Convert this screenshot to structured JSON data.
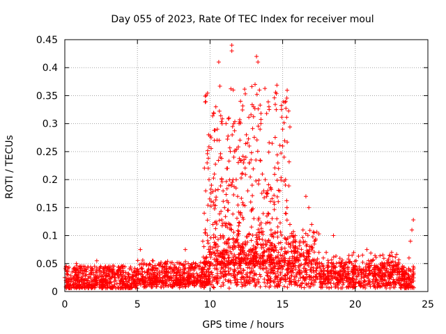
{
  "chart_data": {
    "type": "scatter",
    "title": "Day 055 of 2023, Rate Of TEC Index for receiver moul",
    "xlabel": "GPS time / hours",
    "ylabel": "ROTI / TECUs",
    "xlim": [
      0,
      25
    ],
    "ylim": [
      0,
      0.45
    ],
    "xticks": [
      0,
      5,
      10,
      15,
      20,
      25
    ],
    "xtick_labels": [
      "0",
      "5",
      "10",
      "15",
      "20",
      "25"
    ],
    "yticks": [
      0,
      0.05,
      0.1,
      0.15,
      0.2,
      0.25,
      0.3,
      0.35,
      0.4,
      0.45
    ],
    "ytick_labels": [
      "0",
      "0.05",
      "0.1",
      "0.15",
      "0.2",
      "0.25",
      "0.3",
      "0.35",
      "0.4",
      "0.45"
    ],
    "grid": true,
    "marker": "+",
    "series": [
      {
        "name": "ROTI",
        "color": "#ff0000",
        "description": "Dense continuous ROTI samples from 0 to 24 h; baseline mostly 0.005-0.05 TECU, with elevated scatter between ~9.5 and ~17 h",
        "x": [
          0.0,
          0.1,
          0.2,
          0.5,
          0.8,
          1.0,
          1.5,
          2.0,
          2.2,
          2.5,
          2.8,
          3.0,
          3.5,
          4.0,
          4.5,
          5.0,
          5.2,
          5.5,
          6.0,
          6.5,
          7.0,
          7.5,
          8.0,
          8.3,
          9.0,
          9.5,
          9.6,
          9.7,
          9.8,
          9.9,
          10.0,
          10.1,
          10.2,
          10.3,
          10.3,
          10.4,
          10.5,
          10.6,
          10.7,
          10.8,
          10.9,
          11.0,
          11.1,
          11.2,
          11.3,
          11.5,
          11.5,
          11.6,
          11.7,
          11.8,
          11.9,
          12.0,
          12.1,
          12.2,
          12.3,
          12.5,
          12.6,
          12.7,
          12.8,
          12.9,
          13.0,
          13.1,
          13.2,
          13.3,
          13.4,
          13.5,
          13.6,
          13.7,
          13.8,
          13.9,
          14.0,
          14.2,
          14.4,
          14.6,
          14.8,
          15.0,
          15.0,
          15.1,
          15.2,
          15.3,
          15.5,
          15.7,
          15.9,
          16.0,
          16.2,
          16.4,
          16.6,
          16.8,
          17.0,
          17.2,
          17.5,
          17.8,
          18.0,
          18.5,
          19.0,
          19.5,
          20.0,
          20.5,
          20.8,
          21.0,
          21.5,
          22.0,
          22.5,
          23.0,
          23.5,
          23.7,
          23.8,
          23.9,
          24.0,
          24.0
        ],
        "y": [
          0.025,
          0.045,
          0.03,
          0.035,
          0.05,
          0.025,
          0.04,
          0.03,
          0.055,
          0.035,
          0.045,
          0.03,
          0.02,
          0.035,
          0.025,
          0.035,
          0.075,
          0.05,
          0.04,
          0.035,
          0.045,
          0.035,
          0.05,
          0.075,
          0.05,
          0.09,
          0.14,
          0.18,
          0.23,
          0.28,
          0.08,
          0.19,
          0.12,
          0.21,
          0.27,
          0.33,
          0.29,
          0.41,
          0.24,
          0.2,
          0.18,
          0.15,
          0.3,
          0.22,
          0.31,
          0.44,
          0.43,
          0.36,
          0.25,
          0.2,
          0.17,
          0.3,
          0.34,
          0.21,
          0.23,
          0.28,
          0.18,
          0.26,
          0.16,
          0.19,
          0.33,
          0.37,
          0.42,
          0.41,
          0.36,
          0.3,
          0.21,
          0.18,
          0.2,
          0.17,
          0.14,
          0.11,
          0.16,
          0.13,
          0.18,
          0.29,
          0.26,
          0.24,
          0.2,
          0.15,
          0.12,
          0.1,
          0.08,
          0.07,
          0.09,
          0.11,
          0.17,
          0.15,
          0.12,
          0.09,
          0.07,
          0.06,
          0.07,
          0.1,
          0.05,
          0.04,
          0.045,
          0.065,
          0.075,
          0.05,
          0.045,
          0.05,
          0.07,
          0.04,
          0.035,
          0.06,
          0.09,
          0.11,
          0.128,
          0.03
        ]
      }
    ]
  }
}
